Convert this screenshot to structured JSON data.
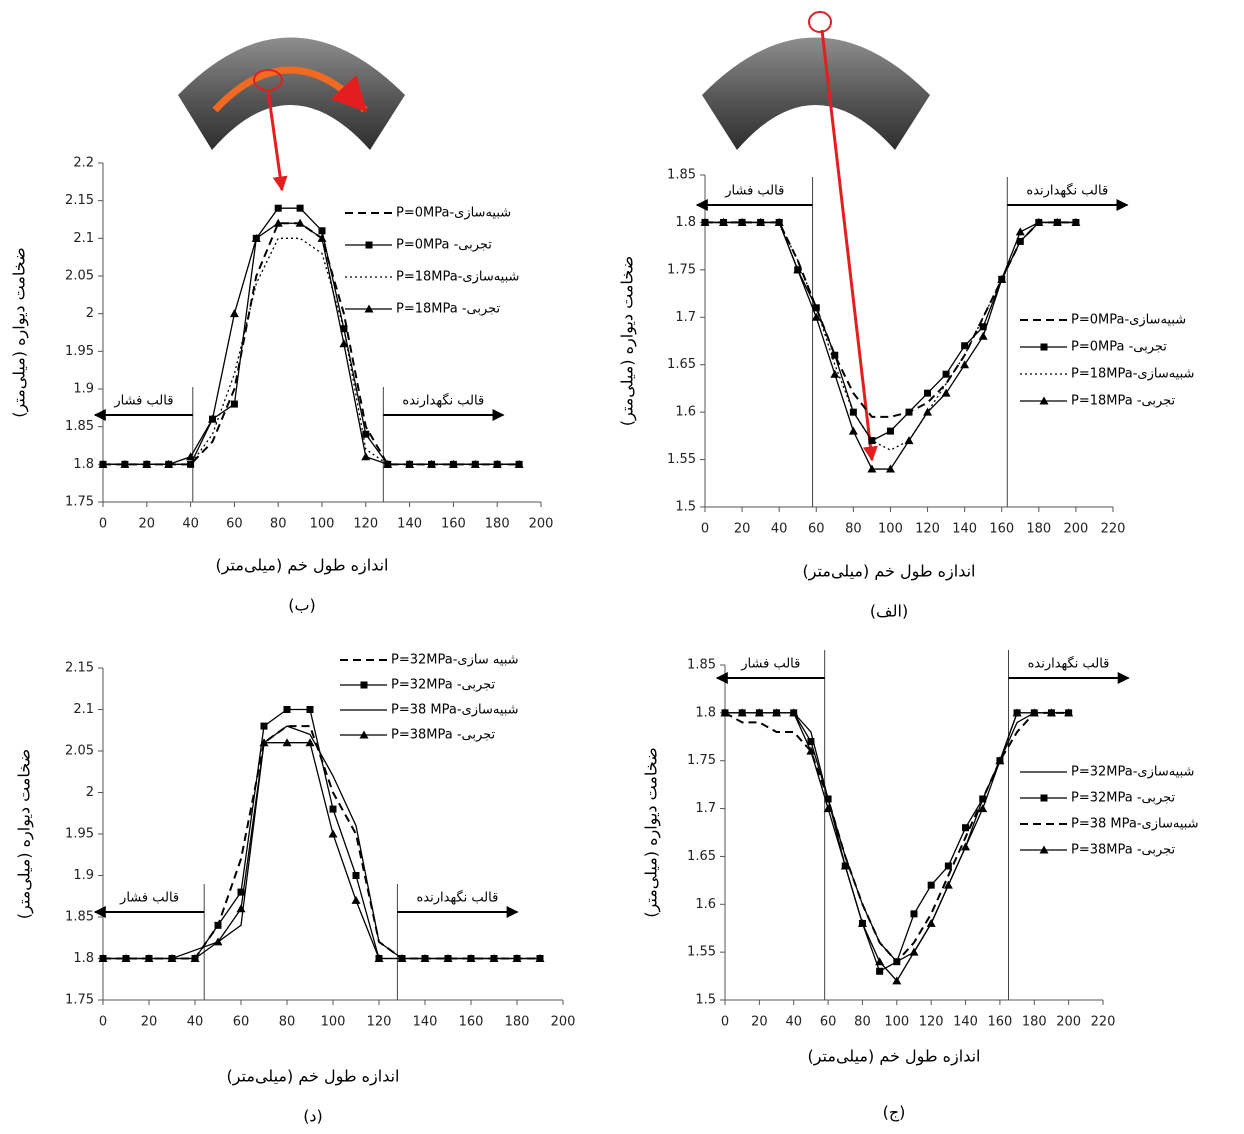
{
  "chart_data": [
    {
      "type": "line",
      "caption": "(ب)",
      "xlabel": "اندازه طول خم (میلی‌متر)",
      "ylabel": "ضخامت دیواره (میلی‌متر)",
      "x": [
        0,
        10,
        20,
        30,
        40,
        50,
        60,
        70,
        80,
        90,
        100,
        110,
        120,
        130,
        140,
        150,
        160,
        170,
        180,
        190
      ],
      "xlim": [
        0,
        200
      ],
      "xticks": [
        0,
        20,
        40,
        60,
        80,
        100,
        120,
        140,
        160,
        180,
        200
      ],
      "ylim": [
        1.75,
        2.2
      ],
      "yticks": [
        1.75,
        1.8,
        1.85,
        1.9,
        1.95,
        2,
        2.05,
        2.1,
        2.15,
        2.2
      ],
      "series": [
        {
          "name": "شبیه‌سازی-P=0MPa",
          "color": "#000000",
          "dash": "dash",
          "marker": "none",
          "values": [
            1.8,
            1.8,
            1.8,
            1.8,
            1.8,
            1.83,
            1.9,
            2.05,
            2.12,
            2.12,
            2.1,
            2.0,
            1.85,
            1.8,
            1.8,
            1.8,
            1.8,
            1.8,
            1.8,
            1.8
          ]
        },
        {
          "name": "تجربی- P=0MPa",
          "color": "#000000",
          "dash": "solid",
          "marker": "square",
          "values": [
            1.8,
            1.8,
            1.8,
            1.8,
            1.8,
            1.86,
            1.88,
            2.1,
            2.14,
            2.14,
            2.11,
            1.98,
            1.84,
            1.8,
            1.8,
            1.8,
            1.8,
            1.8,
            1.8,
            1.8
          ]
        },
        {
          "name": "شبیه‌سازی-P=18MPa",
          "color": "#000000",
          "dash": "dot",
          "marker": "none",
          "values": [
            1.8,
            1.8,
            1.8,
            1.8,
            1.8,
            1.84,
            1.92,
            2.04,
            2.1,
            2.1,
            2.08,
            1.98,
            1.82,
            1.8,
            1.8,
            1.8,
            1.8,
            1.8,
            1.8,
            1.8
          ]
        },
        {
          "name": "تجربی- P=18MPa",
          "color": "#000000",
          "dash": "solid",
          "marker": "triangle",
          "values": [
            1.8,
            1.8,
            1.8,
            1.8,
            1.81,
            1.86,
            2.0,
            2.1,
            2.12,
            2.12,
            2.1,
            1.96,
            1.81,
            1.8,
            1.8,
            1.8,
            1.8,
            1.8,
            1.8,
            1.8
          ]
        }
      ],
      "annotations": [
        {
          "text": "قالب فشار",
          "x": 41,
          "direction": "left"
        },
        {
          "text": "قالب نگهدارنده",
          "x": 128,
          "direction": "right"
        }
      ]
    },
    {
      "type": "line",
      "caption": "(الف)",
      "xlabel": "اندازه طول خم (میلی‌متر)",
      "ylabel": "ضخامت دیواره (میلی‌متر)",
      "x": [
        0,
        10,
        20,
        30,
        40,
        50,
        60,
        70,
        80,
        90,
        100,
        110,
        120,
        130,
        140,
        150,
        160,
        170,
        180,
        190,
        200
      ],
      "xlim": [
        0,
        220
      ],
      "xticks": [
        0,
        20,
        40,
        60,
        80,
        100,
        120,
        140,
        160,
        180,
        200,
        220
      ],
      "ylim": [
        1.5,
        1.85
      ],
      "yticks": [
        1.5,
        1.55,
        1.6,
        1.65,
        1.7,
        1.75,
        1.8,
        1.85
      ],
      "series": [
        {
          "name": "شبیه‌سازی-P=0MPa",
          "color": "#000000",
          "dash": "dash",
          "marker": "none",
          "values": [
            1.8,
            1.8,
            1.8,
            1.8,
            1.8,
            1.76,
            1.71,
            1.66,
            1.62,
            1.595,
            1.595,
            1.6,
            1.61,
            1.63,
            1.66,
            1.7,
            1.74,
            1.78,
            1.8,
            1.8,
            1.8
          ]
        },
        {
          "name": "تجربی- P=0MPa",
          "color": "#000000",
          "dash": "solid",
          "marker": "square",
          "values": [
            1.8,
            1.8,
            1.8,
            1.8,
            1.8,
            1.75,
            1.71,
            1.66,
            1.6,
            1.57,
            1.58,
            1.6,
            1.62,
            1.64,
            1.67,
            1.69,
            1.74,
            1.78,
            1.8,
            1.8,
            1.8
          ]
        },
        {
          "name": "شبیه‌سازی-P=18MPa",
          "color": "#000000",
          "dash": "dot",
          "marker": "none",
          "values": [
            1.8,
            1.8,
            1.8,
            1.8,
            1.8,
            1.76,
            1.71,
            1.65,
            1.6,
            1.57,
            1.56,
            1.57,
            1.6,
            1.63,
            1.66,
            1.7,
            1.74,
            1.78,
            1.8,
            1.8,
            1.8
          ]
        },
        {
          "name": "تجربی- P=18MPa",
          "color": "#000000",
          "dash": "solid",
          "marker": "triangle",
          "values": [
            1.8,
            1.8,
            1.8,
            1.8,
            1.8,
            1.75,
            1.7,
            1.64,
            1.58,
            1.54,
            1.54,
            1.57,
            1.6,
            1.62,
            1.65,
            1.68,
            1.74,
            1.79,
            1.8,
            1.8,
            1.8
          ]
        }
      ],
      "annotations": [
        {
          "text": "قالب فشار",
          "x": 58,
          "direction": "left"
        },
        {
          "text": "قالب نگهدارنده",
          "x": 163,
          "direction": "right"
        }
      ]
    },
    {
      "type": "line",
      "caption": "(د)",
      "xlabel": "اندازه طول خم (میلی‌متر)",
      "ylabel": "ضخامت دیواره (میلی‌متر)",
      "x": [
        0,
        10,
        20,
        30,
        40,
        50,
        60,
        70,
        80,
        90,
        100,
        110,
        120,
        130,
        140,
        150,
        160,
        170,
        180,
        190
      ],
      "xlim": [
        0,
        200
      ],
      "xticks": [
        0,
        20,
        40,
        60,
        80,
        100,
        120,
        140,
        160,
        180,
        200
      ],
      "ylim": [
        1.75,
        2.15
      ],
      "yticks": [
        1.75,
        1.8,
        1.85,
        1.9,
        1.95,
        2,
        2.05,
        2.1,
        2.15
      ],
      "series": [
        {
          "name": "شبیه سازی-P=32MPa",
          "color": "#000000",
          "dash": "dash",
          "marker": "none",
          "values": [
            1.8,
            1.8,
            1.8,
            1.8,
            1.8,
            1.84,
            1.92,
            2.06,
            2.08,
            2.08,
            2.0,
            1.95,
            1.82,
            1.8,
            1.8,
            1.8,
            1.8,
            1.8,
            1.8,
            1.8
          ]
        },
        {
          "name": "تجربی- P=32MPa",
          "color": "#000000",
          "dash": "solid",
          "marker": "square",
          "values": [
            1.8,
            1.8,
            1.8,
            1.8,
            1.8,
            1.84,
            1.88,
            2.08,
            2.1,
            2.1,
            1.98,
            1.9,
            1.8,
            1.8,
            1.8,
            1.8,
            1.8,
            1.8,
            1.8,
            1.8
          ]
        },
        {
          "name": "شبیه‌سازی-P=38 MPa",
          "color": "#000000",
          "dash": "solid",
          "marker": "none",
          "values": [
            1.8,
            1.8,
            1.8,
            1.8,
            1.81,
            1.82,
            1.84,
            2.06,
            2.08,
            2.07,
            2.02,
            1.96,
            1.82,
            1.8,
            1.8,
            1.8,
            1.8,
            1.8,
            1.8,
            1.8
          ]
        },
        {
          "name": "تجربی- P=38MPa",
          "color": "#000000",
          "dash": "solid",
          "marker": "triangle",
          "values": [
            1.8,
            1.8,
            1.8,
            1.8,
            1.8,
            1.82,
            1.86,
            2.06,
            2.06,
            2.06,
            1.95,
            1.87,
            1.8,
            1.8,
            1.8,
            1.8,
            1.8,
            1.8,
            1.8,
            1.8
          ]
        }
      ],
      "annotations": [
        {
          "text": "قالب فشار",
          "x": 44,
          "direction": "left"
        },
        {
          "text": "قالب نگهدارنده",
          "x": 128,
          "direction": "right"
        }
      ]
    },
    {
      "type": "line",
      "caption": "(ج)",
      "xlabel": "اندازه طول خم (میلی‌متر)",
      "ylabel": "ضخامت دیواره (میلی‌متر)",
      "x": [
        0,
        10,
        20,
        30,
        40,
        50,
        60,
        70,
        80,
        90,
        100,
        110,
        120,
        130,
        140,
        150,
        160,
        170,
        180,
        190,
        200
      ],
      "xlim": [
        0,
        220
      ],
      "xticks": [
        0,
        20,
        40,
        60,
        80,
        100,
        120,
        140,
        160,
        180,
        200,
        220
      ],
      "ylim": [
        1.5,
        1.85
      ],
      "yticks": [
        1.5,
        1.55,
        1.6,
        1.65,
        1.7,
        1.75,
        1.8,
        1.85
      ],
      "series": [
        {
          "name": "شبیه‌سازی-P=32MPa",
          "color": "#000000",
          "dash": "solid",
          "marker": "none",
          "values": [
            1.8,
            1.8,
            1.8,
            1.8,
            1.8,
            1.78,
            1.71,
            1.65,
            1.6,
            1.56,
            1.54,
            1.55,
            1.58,
            1.62,
            1.66,
            1.71,
            1.75,
            1.79,
            1.8,
            1.8,
            1.8
          ]
        },
        {
          "name": "تجربی- P=32MPa",
          "color": "#000000",
          "dash": "solid",
          "marker": "square",
          "values": [
            1.8,
            1.8,
            1.8,
            1.8,
            1.8,
            1.77,
            1.71,
            1.64,
            1.58,
            1.53,
            1.54,
            1.59,
            1.62,
            1.64,
            1.68,
            1.71,
            1.75,
            1.8,
            1.8,
            1.8,
            1.8
          ]
        },
        {
          "name": "شبیه‌سازی-P=38 MPa",
          "color": "#000000",
          "dash": "dash",
          "marker": "none",
          "values": [
            1.8,
            1.79,
            1.79,
            1.78,
            1.78,
            1.76,
            1.71,
            1.65,
            1.6,
            1.56,
            1.54,
            1.56,
            1.59,
            1.63,
            1.67,
            1.71,
            1.75,
            1.78,
            1.8,
            1.8,
            1.8
          ]
        },
        {
          "name": "تجربی- P=38MPa",
          "color": "#000000",
          "dash": "solid",
          "marker": "triangle",
          "values": [
            1.8,
            1.8,
            1.8,
            1.8,
            1.8,
            1.76,
            1.7,
            1.64,
            1.58,
            1.54,
            1.52,
            1.55,
            1.58,
            1.62,
            1.66,
            1.7,
            1.75,
            1.8,
            1.8,
            1.8,
            1.8
          ]
        }
      ],
      "annotations": [
        {
          "text": "قالب فشار",
          "x": 58,
          "direction": "left"
        },
        {
          "text": "قالب نگهدارنده",
          "x": 165,
          "direction": "right"
        }
      ]
    }
  ]
}
